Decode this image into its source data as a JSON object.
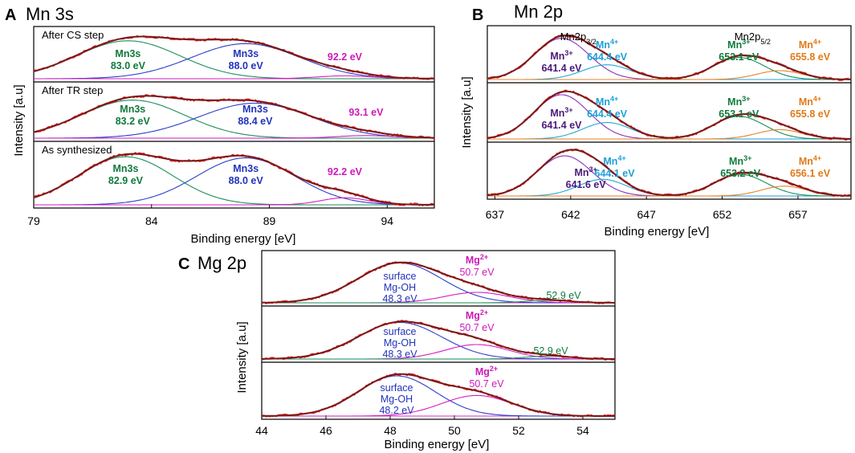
{
  "colors": {
    "envelope": "#7a1a1a",
    "raw": "#e02020",
    "green": "#1a8f5a",
    "blue": "#2d3fc8",
    "magenta": "#d21fc4",
    "purple": "#8c2fc0",
    "cyan": "#22a6d8",
    "orange": "#e8822a",
    "baseline": "#d430d0",
    "label_green": "#0f7a3c",
    "label_blue": "#2233bb",
    "label_magenta": "#cc1ab8",
    "label_purple": "#4a1a7a",
    "label_cyan": "#1fa0d8",
    "label_orange": "#e07a1a"
  },
  "chart_data": [
    {
      "id": "A",
      "type": "line",
      "panel_label": "A",
      "title": "Mn 3s",
      "xlabel": "Binding energy [eV]",
      "ylabel": "Intensity [a.u]",
      "xlim": [
        79,
        96
      ],
      "xticks": [
        79,
        84,
        89,
        94
      ],
      "ylim": [
        0,
        1
      ],
      "subpanels": [
        {
          "label": "After CS step",
          "components": [
            {
              "name": "Mn3s 83.0",
              "center": 83.0,
              "height": 0.8,
              "width": 2.2,
              "color": "green"
            },
            {
              "name": "Mn3s 88.0",
              "center": 88.0,
              "height": 0.74,
              "width": 2.3,
              "color": "blue"
            },
            {
              "name": "92.2",
              "center": 92.2,
              "height": 0.06,
              "width": 1.2,
              "color": "magenta"
            }
          ],
          "annotations": [
            {
              "lines": [
                "Mn3s",
                "83.0 eV"
              ],
              "x": 83.0,
              "color": "label_green"
            },
            {
              "lines": [
                "Mn3s",
                "88.0 eV"
              ],
              "x": 88.0,
              "color": "label_blue"
            },
            {
              "lines": [
                "92.2 eV"
              ],
              "x": 92.2,
              "color": "label_magenta"
            }
          ]
        },
        {
          "label": "After TR step",
          "components": [
            {
              "name": "Mn3s 83.2",
              "center": 83.2,
              "height": 0.74,
              "width": 2.2,
              "color": "green"
            },
            {
              "name": "Mn3s 88.4",
              "center": 88.4,
              "height": 0.68,
              "width": 2.4,
              "color": "blue"
            },
            {
              "name": "93.1",
              "center": 93.1,
              "height": 0.05,
              "width": 1.2,
              "color": "magenta"
            }
          ],
          "annotations": [
            {
              "lines": [
                "Mn3s",
                "83.2 eV"
              ],
              "x": 83.2,
              "color": "label_green"
            },
            {
              "lines": [
                "Mn3s",
                "88.4 eV"
              ],
              "x": 88.4,
              "color": "label_blue"
            },
            {
              "lines": [
                "93.1 eV"
              ],
              "x": 93.1,
              "color": "label_magenta"
            }
          ]
        },
        {
          "label": "As synthesized",
          "components": [
            {
              "name": "Mn3s 82.9",
              "center": 82.9,
              "height": 0.82,
              "width": 2.0,
              "color": "green"
            },
            {
              "name": "Mn3s 88.0",
              "center": 88.0,
              "height": 0.8,
              "width": 2.1,
              "color": "blue"
            },
            {
              "name": "92.2",
              "center": 92.2,
              "height": 0.12,
              "width": 1.0,
              "color": "magenta"
            }
          ],
          "annotations": [
            {
              "lines": [
                "Mn3s",
                "82.9 eV"
              ],
              "x": 82.9,
              "color": "label_green"
            },
            {
              "lines": [
                "Mn3s",
                "88.0 eV"
              ],
              "x": 88.0,
              "color": "label_blue"
            },
            {
              "lines": [
                "92.2 eV"
              ],
              "x": 92.2,
              "color": "label_magenta"
            }
          ]
        }
      ]
    },
    {
      "id": "B",
      "type": "line",
      "panel_label": "B",
      "title": "Mn 2p",
      "xlabel": "Binding energy [eV]",
      "ylabel": "Intensity [a.u]",
      "xlim": [
        636.5,
        660.5
      ],
      "xticks": [
        637,
        642,
        647,
        652,
        657
      ],
      "ylim": [
        0,
        1
      ],
      "header_labels": [
        {
          "main": "Mn2p",
          "sub": "3/2",
          "x": 642.5
        },
        {
          "main": "Mn2p",
          "sub": "5/2",
          "x": 654.0
        }
      ],
      "subpanels": [
        {
          "components": [
            {
              "name": "Mn3+ 641.4",
              "center": 641.4,
              "height": 0.84,
              "width": 1.8,
              "color": "purple"
            },
            {
              "name": "Mn4+ 644.4",
              "center": 644.4,
              "height": 0.3,
              "width": 1.6,
              "color": "cyan"
            },
            {
              "name": "Mn3+ 653.1",
              "center": 653.1,
              "height": 0.45,
              "width": 1.7,
              "color": "green"
            },
            {
              "name": "Mn4+ 655.8",
              "center": 655.8,
              "height": 0.18,
              "width": 1.5,
              "color": "orange"
            }
          ],
          "annotations": [
            {
              "ion": "Mn",
              "charge": "3+",
              "value": "641.4 eV",
              "x": 641.4,
              "color": "label_purple"
            },
            {
              "ion": "Mn",
              "charge": "4+",
              "value": "644.4 eV",
              "x": 644.4,
              "color": "label_cyan"
            },
            {
              "ion": "Mn",
              "charge": "3+",
              "value": "653.1 eV",
              "x": 653.1,
              "color": "label_green"
            },
            {
              "ion": "Mn",
              "charge": "4+",
              "value": "655.8 eV",
              "x": 657.8,
              "color": "label_orange"
            }
          ]
        },
        {
          "components": [
            {
              "name": "Mn3+ 641.4",
              "center": 641.4,
              "height": 0.86,
              "width": 1.8,
              "color": "purple"
            },
            {
              "name": "Mn4+ 644.4",
              "center": 644.4,
              "height": 0.32,
              "width": 1.6,
              "color": "cyan"
            },
            {
              "name": "Mn3+ 653.1",
              "center": 653.1,
              "height": 0.44,
              "width": 1.7,
              "color": "green"
            },
            {
              "name": "Mn4+ 655.8",
              "center": 655.8,
              "height": 0.18,
              "width": 1.5,
              "color": "orange"
            }
          ],
          "annotations": [
            {
              "ion": "Mn",
              "charge": "3+",
              "value": "641.4 eV",
              "x": 641.4,
              "color": "label_purple"
            },
            {
              "ion": "Mn",
              "charge": "4+",
              "value": "644.4 eV",
              "x": 644.4,
              "color": "label_cyan"
            },
            {
              "ion": "Mn",
              "charge": "3+",
              "value": "653.1 eV",
              "x": 653.1,
              "color": "label_green"
            },
            {
              "ion": "Mn",
              "charge": "4+",
              "value": "655.8 eV",
              "x": 657.8,
              "color": "label_orange"
            }
          ]
        },
        {
          "components": [
            {
              "name": "Mn3+ 641.6",
              "center": 641.6,
              "height": 0.82,
              "width": 1.8,
              "color": "purple"
            },
            {
              "name": "Mn4+ 644.1",
              "center": 644.1,
              "height": 0.34,
              "width": 1.6,
              "color": "cyan"
            },
            {
              "name": "Mn3+ 653.2",
              "center": 653.2,
              "height": 0.44,
              "width": 1.7,
              "color": "green"
            },
            {
              "name": "Mn4+ 656.1",
              "center": 656.1,
              "height": 0.2,
              "width": 1.5,
              "color": "orange"
            }
          ],
          "annotations": [
            {
              "ion": "Mn",
              "charge": "3+",
              "value": "641.6 eV",
              "x": 643.0,
              "color": "label_purple"
            },
            {
              "ion": "Mn",
              "charge": "4+",
              "value": "644.1 eV",
              "x": 644.9,
              "color": "label_cyan"
            },
            {
              "ion": "Mn",
              "charge": "3+",
              "value": "653.2 eV",
              "x": 653.2,
              "color": "label_green"
            },
            {
              "ion": "Mn",
              "charge": "4+",
              "value": "656.1 eV",
              "x": 657.8,
              "color": "label_orange"
            }
          ]
        }
      ]
    },
    {
      "id": "C",
      "type": "line",
      "panel_label": "C",
      "title": "Mg 2p",
      "xlabel": "Binding energy [eV]",
      "ylabel": "Intensity [a.u]",
      "xlim": [
        44,
        55
      ],
      "xticks": [
        44,
        46,
        48,
        50,
        52,
        54
      ],
      "ylim": [
        0,
        1
      ],
      "subpanels": [
        {
          "components": [
            {
              "name": "surface Mg-OH 48.3",
              "center": 48.3,
              "height": 0.84,
              "width": 1.3,
              "color": "blue"
            },
            {
              "name": "Mg2+ 50.7",
              "center": 50.7,
              "height": 0.22,
              "width": 1.0,
              "color": "magenta"
            },
            {
              "name": "52.9",
              "center": 52.9,
              "height": 0.05,
              "width": 0.7,
              "color": "green"
            }
          ],
          "annotations": [
            {
              "kind": "multi",
              "lines": [
                "surface",
                "Mg-OH",
                "48.3  eV"
              ],
              "x": 48.3,
              "color": "label_blue"
            },
            {
              "kind": "ion",
              "ion": "Mg",
              "charge": "2+",
              "value": "50.7  eV",
              "x": 50.7,
              "color": "label_magenta"
            },
            {
              "kind": "multi",
              "lines": [
                "52.9  eV"
              ],
              "x": 53.4,
              "color": "label_green"
            }
          ]
        },
        {
          "components": [
            {
              "name": "surface Mg-OH 48.3",
              "center": 48.3,
              "height": 0.76,
              "width": 1.3,
              "color": "blue"
            },
            {
              "name": "Mg2+ 50.7",
              "center": 50.7,
              "height": 0.3,
              "width": 1.0,
              "color": "magenta"
            },
            {
              "name": "52.9",
              "center": 52.9,
              "height": 0.06,
              "width": 0.7,
              "color": "green"
            }
          ],
          "annotations": [
            {
              "kind": "multi",
              "lines": [
                "surface",
                "Mg-OH",
                "48.3  eV"
              ],
              "x": 48.3,
              "color": "label_blue"
            },
            {
              "kind": "ion",
              "ion": "Mg",
              "charge": "2+",
              "value": "50.7  eV",
              "x": 50.7,
              "color": "label_magenta"
            },
            {
              "kind": "multi",
              "lines": [
                "52.9  eV"
              ],
              "x": 53.0,
              "color": "label_green"
            }
          ]
        },
        {
          "components": [
            {
              "name": "surface Mg-OH 48.2",
              "center": 48.2,
              "height": 0.82,
              "width": 1.2,
              "color": "blue"
            },
            {
              "name": "Mg2+ 50.7",
              "center": 50.7,
              "height": 0.42,
              "width": 1.1,
              "color": "magenta"
            }
          ],
          "annotations": [
            {
              "kind": "multi",
              "lines": [
                "surface",
                "Mg-OH",
                "48.2  eV"
              ],
              "x": 48.2,
              "color": "label_blue"
            },
            {
              "kind": "ion",
              "ion": "Mg",
              "charge": "2+",
              "value": "50.7  eV",
              "x": 51.0,
              "color": "label_magenta"
            }
          ]
        }
      ]
    }
  ]
}
